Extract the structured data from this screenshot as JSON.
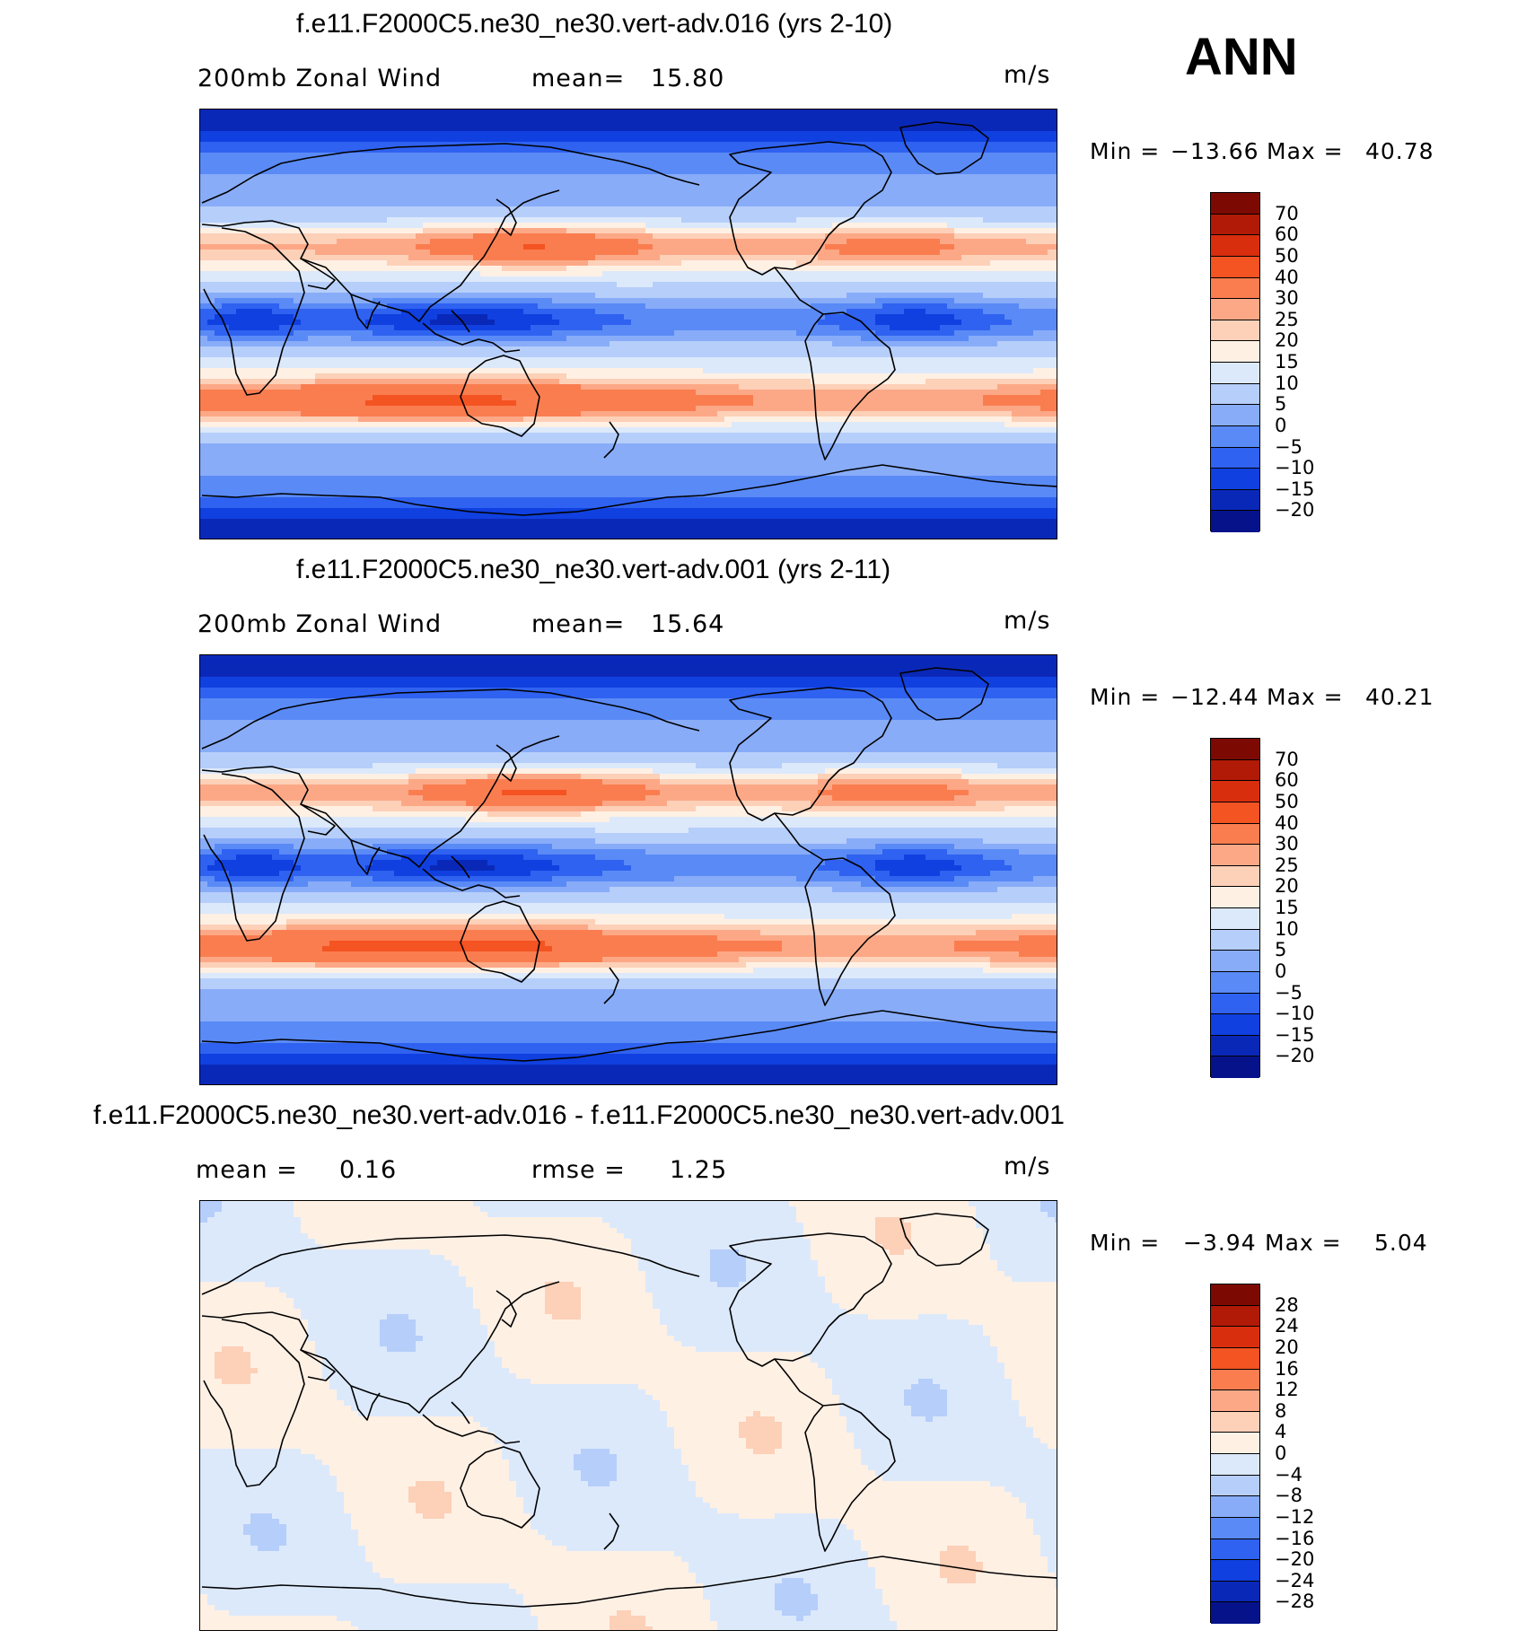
{
  "season": "ANN",
  "colors": {
    "scale": [
      "#06128a",
      "#0a28b8",
      "#1040e0",
      "#2f62f0",
      "#5a8af6",
      "#88acf8",
      "#b6cefa",
      "#dce9fb",
      "#fff0e4",
      "#fdd0b8",
      "#fca886",
      "#fa7d50",
      "#f45322",
      "#d92e0e",
      "#b01a06",
      "#7c0a02"
    ],
    "land_outline": "#000000"
  },
  "panels": [
    {
      "title": "f.e11.F2000C5.ne30_ne30.vert-adv.016 (yrs 2-10)",
      "left_label": "200mb Zonal Wind",
      "stat_label": "mean=",
      "stat_value": "15.80",
      "units": "m/s",
      "min_label": "Min =",
      "min_value": "−13.66",
      "max_label": "Max =",
      "max_value": "40.78",
      "levels": [
        "70",
        "60",
        "50",
        "40",
        "30",
        "25",
        "20",
        "15",
        "10",
        "5",
        "0",
        "−5",
        "−10",
        "−15",
        "−20"
      ],
      "field": "model",
      "jet_strength": 1.0
    },
    {
      "title": "f.e11.F2000C5.ne30_ne30.vert-adv.001 (yrs 2-11)",
      "left_label": "200mb Zonal Wind",
      "stat_label": "mean=",
      "stat_value": "15.64",
      "units": "m/s",
      "min_label": "Min =",
      "min_value": "−12.44",
      "max_label": "Max =",
      "max_value": "40.21",
      "levels": [
        "70",
        "60",
        "50",
        "40",
        "30",
        "25",
        "20",
        "15",
        "10",
        "5",
        "0",
        "−5",
        "−10",
        "−15",
        "−20"
      ],
      "field": "model",
      "jet_strength": 1.04
    },
    {
      "title": "f.e11.F2000C5.ne30_ne30.vert-adv.016 - f.e11.F2000C5.ne30_ne30.vert-adv.001",
      "left_label": "mean =",
      "left_value": "0.16",
      "stat_label": "rmse =",
      "stat_value": "1.25",
      "units": "m/s",
      "min_label": "Min =",
      "min_value": "−3.94",
      "max_label": "Max =",
      "max_value": "5.04",
      "levels": [
        "28",
        "24",
        "20",
        "16",
        "12",
        "8",
        "4",
        "0",
        "−4",
        "−8",
        "−12",
        "−16",
        "−20",
        "−24",
        "−28"
      ],
      "field": "difference",
      "jet_strength": 1.0
    }
  ]
}
